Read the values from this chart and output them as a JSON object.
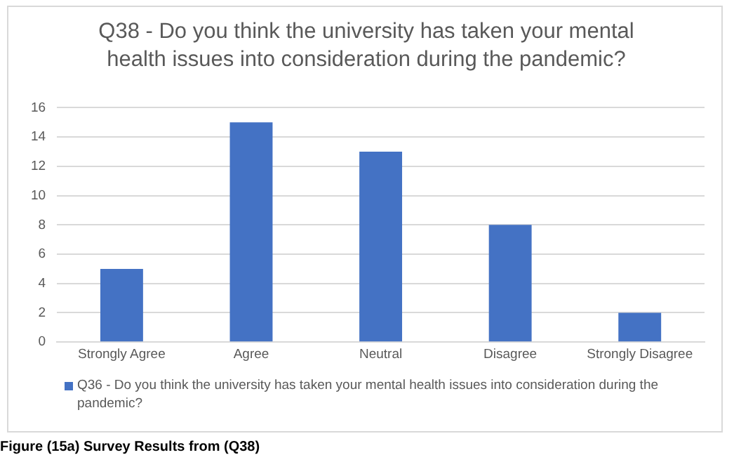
{
  "chart_data": {
    "type": "bar",
    "title": "Q38 - Do you think the university has taken your mental health issues into consideration during the pandemic?",
    "categories": [
      "Strongly Agree",
      "Agree",
      "Neutral",
      "Disagree",
      "Strongly Disagree"
    ],
    "series": [
      {
        "name": "Q36 - Do you think the university has taken your mental health issues into consideration during the pandemic?",
        "color": "#4472c4",
        "values": [
          5,
          15,
          13,
          8,
          2
        ]
      }
    ],
    "ylim": [
      0,
      16
    ],
    "yticks": [
      0,
      2,
      4,
      6,
      8,
      10,
      12,
      14,
      16
    ],
    "grid": "y",
    "legend": "bottom",
    "annotations": [
      "Figure (15a) Survey Results from (Q38)"
    ]
  }
}
